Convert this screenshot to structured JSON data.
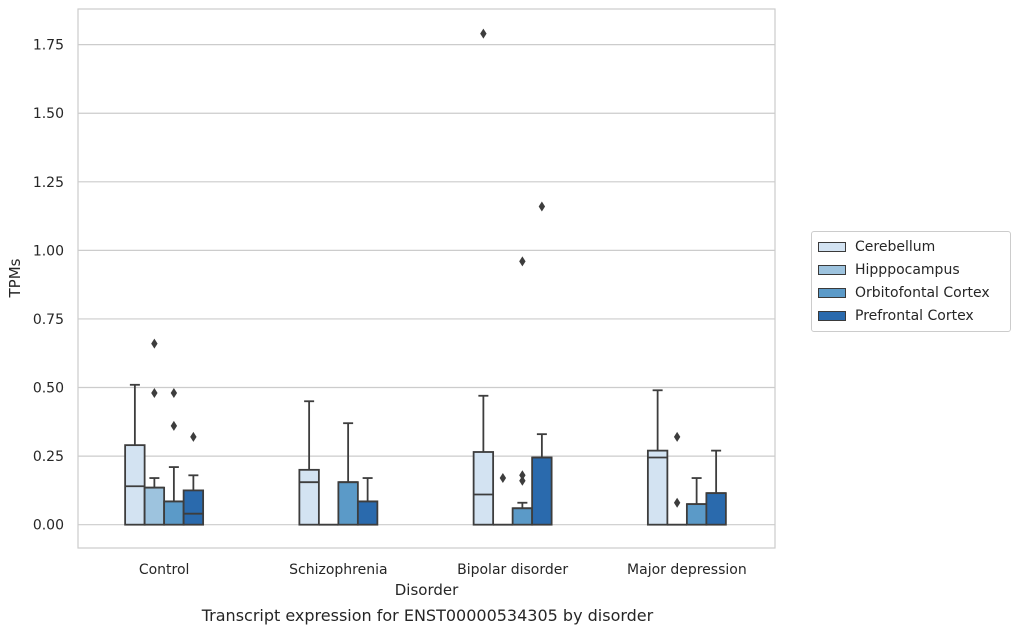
{
  "caption": "Transcript expression for ENST00000534305 by disorder",
  "chart_data": {
    "type": "boxplot",
    "xlabel": "Disorder",
    "ylabel": "TPMs",
    "ylim": [
      -0.085,
      1.88
    ],
    "yticks": [
      0.0,
      0.25,
      0.5,
      0.75,
      1.0,
      1.25,
      1.5,
      1.75
    ],
    "ytick_labels": [
      "0.00",
      "0.25",
      "0.50",
      "0.75",
      "1.00",
      "1.25",
      "1.50",
      "1.75"
    ],
    "grid": "horizontal",
    "legend_position": "right",
    "categories": [
      "Control",
      "Schizophrenia",
      "Bipolar disorder",
      "Major depression"
    ],
    "series": [
      {
        "name": "Cerebellum",
        "color": "#d3e3f2",
        "boxes": [
          {
            "q1": 0.0,
            "median": 0.14,
            "q3": 0.29,
            "whisker_low": 0.0,
            "whisker_high": 0.51,
            "outliers": []
          },
          {
            "q1": 0.0,
            "median": 0.155,
            "q3": 0.2,
            "whisker_low": 0.0,
            "whisker_high": 0.45,
            "outliers": []
          },
          {
            "q1": 0.0,
            "median": 0.11,
            "q3": 0.265,
            "whisker_low": 0.0,
            "whisker_high": 0.47,
            "outliers": [
              1.79
            ]
          },
          {
            "q1": 0.0,
            "median": 0.245,
            "q3": 0.27,
            "whisker_low": 0.0,
            "whisker_high": 0.49,
            "outliers": []
          }
        ]
      },
      {
        "name": "Hipppocampus",
        "color": "#9dc3de",
        "boxes": [
          {
            "q1": 0.0,
            "median": 0.135,
            "q3": 0.135,
            "whisker_low": 0.0,
            "whisker_high": 0.17,
            "outliers": [
              0.66,
              0.48
            ]
          },
          {
            "q1": 0.0,
            "median": 0.0,
            "q3": 0.0,
            "whisker_low": 0.0,
            "whisker_high": 0.0,
            "outliers": []
          },
          {
            "q1": 0.0,
            "median": 0.0,
            "q3": 0.0,
            "whisker_low": 0.0,
            "whisker_high": 0.0,
            "outliers": [
              0.17
            ]
          },
          {
            "q1": 0.0,
            "median": 0.0,
            "q3": 0.0,
            "whisker_low": 0.0,
            "whisker_high": 0.0,
            "outliers": [
              0.32,
              0.08
            ]
          }
        ]
      },
      {
        "name": "Orbitofontal Cortex",
        "color": "#5b9ac8",
        "boxes": [
          {
            "q1": 0.0,
            "median": 0.085,
            "q3": 0.085,
            "whisker_low": 0.0,
            "whisker_high": 0.21,
            "outliers": [
              0.48,
              0.36
            ]
          },
          {
            "q1": 0.0,
            "median": 0.155,
            "q3": 0.155,
            "whisker_low": 0.0,
            "whisker_high": 0.37,
            "outliers": []
          },
          {
            "q1": 0.0,
            "median": 0.06,
            "q3": 0.06,
            "whisker_low": 0.0,
            "whisker_high": 0.08,
            "outliers": [
              0.96,
              0.18,
              0.16
            ]
          },
          {
            "q1": 0.0,
            "median": 0.075,
            "q3": 0.075,
            "whisker_low": 0.0,
            "whisker_high": 0.17,
            "outliers": []
          }
        ]
      },
      {
        "name": "Prefrontal Cortex",
        "color": "#2a6aad",
        "boxes": [
          {
            "q1": 0.0,
            "median": 0.04,
            "q3": 0.125,
            "whisker_low": 0.0,
            "whisker_high": 0.18,
            "outliers": [
              0.32
            ]
          },
          {
            "q1": 0.0,
            "median": 0.085,
            "q3": 0.085,
            "whisker_low": 0.0,
            "whisker_high": 0.17,
            "outliers": []
          },
          {
            "q1": 0.0,
            "median": 0.245,
            "q3": 0.245,
            "whisker_low": 0.0,
            "whisker_high": 0.33,
            "outliers": [
              1.16
            ]
          },
          {
            "q1": 0.0,
            "median": 0.115,
            "q3": 0.115,
            "whisker_low": 0.0,
            "whisker_high": 0.27,
            "outliers": []
          }
        ]
      }
    ]
  }
}
